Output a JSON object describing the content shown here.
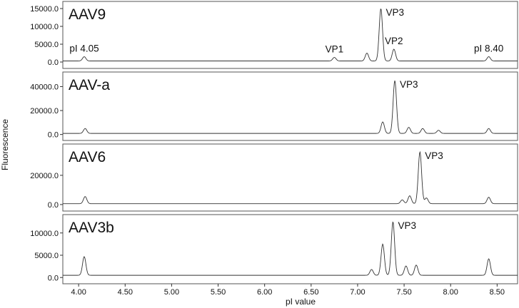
{
  "chart_data": {
    "type": "line",
    "xlabel": "pI value",
    "ylabel": "Fluorescence",
    "xlim": [
      3.83,
      8.72
    ],
    "x_ticks": [
      "4.00",
      "4.50",
      "5.00",
      "5.50",
      "6.00",
      "6.50",
      "7.00",
      "7.50",
      "8.00",
      "8.50"
    ],
    "x_tick_values": [
      4.0,
      4.5,
      5.0,
      5.5,
      6.0,
      6.5,
      7.0,
      7.5,
      8.0,
      8.5
    ],
    "panels": [
      {
        "name": "AAV9",
        "ylim": [
          -800,
          15600
        ],
        "y_ticks": [
          "0.0",
          "5000.0",
          "10000.0",
          "15000.0"
        ],
        "y_tick_values": [
          0,
          5000,
          10000,
          15000
        ],
        "baseline": 300,
        "peaks": [
          {
            "x": 4.06,
            "y": 1500
          },
          {
            "x": 6.75,
            "y": 1300
          },
          {
            "x": 7.1,
            "y": 2500
          },
          {
            "x": 7.25,
            "y": 15000
          },
          {
            "x": 7.39,
            "y": 3600
          },
          {
            "x": 8.41,
            "y": 1500
          }
        ],
        "annotations": [
          {
            "text": "pI 4.05",
            "x": 4.06
          },
          {
            "text": "VP1",
            "x": 6.75
          },
          {
            "text": "VP3",
            "x": 7.25
          },
          {
            "text": "VP2",
            "x": 7.39
          },
          {
            "text": "pI 8.40",
            "x": 8.41
          }
        ]
      },
      {
        "name": "AAV-a",
        "ylim": [
          -2000,
          48000
        ],
        "y_ticks": [
          "0.0",
          "20000.0",
          "40000.0"
        ],
        "y_tick_values": [
          0,
          20000,
          40000
        ],
        "baseline": 900,
        "peaks": [
          {
            "x": 4.07,
            "y": 5000
          },
          {
            "x": 7.27,
            "y": 10500
          },
          {
            "x": 7.4,
            "y": 45000
          },
          {
            "x": 7.55,
            "y": 6000
          },
          {
            "x": 7.7,
            "y": 5000
          },
          {
            "x": 7.87,
            "y": 3500
          },
          {
            "x": 8.41,
            "y": 5000
          }
        ],
        "annotations": [
          {
            "text": "VP3",
            "x": 7.4
          }
        ]
      },
      {
        "name": "AAV6",
        "ylim": [
          -2000,
          38000
        ],
        "y_ticks": [
          "0.0",
          "20000.0"
        ],
        "y_tick_values": [
          0,
          20000
        ],
        "baseline": 600,
        "peaks": [
          {
            "x": 4.07,
            "y": 5500
          },
          {
            "x": 7.48,
            "y": 3200
          },
          {
            "x": 7.56,
            "y": 6000
          },
          {
            "x": 7.67,
            "y": 36000
          },
          {
            "x": 7.74,
            "y": 4500
          },
          {
            "x": 8.41,
            "y": 5000
          }
        ],
        "annotations": [
          {
            "text": "VP3",
            "x": 7.67
          }
        ]
      },
      {
        "name": "AAV3b",
        "ylim": [
          -600,
          13000
        ],
        "y_ticks": [
          "0.0",
          "5000.0",
          "10000.0"
        ],
        "y_tick_values": [
          0,
          5000,
          10000
        ],
        "baseline": 500,
        "peaks": [
          {
            "x": 4.06,
            "y": 4700
          },
          {
            "x": 7.15,
            "y": 1800
          },
          {
            "x": 7.27,
            "y": 7500
          },
          {
            "x": 7.38,
            "y": 12500
          },
          {
            "x": 7.52,
            "y": 2600
          },
          {
            "x": 7.63,
            "y": 2800
          },
          {
            "x": 8.41,
            "y": 4200
          }
        ],
        "annotations": [
          {
            "text": "VP3",
            "x": 7.38
          }
        ]
      }
    ]
  }
}
